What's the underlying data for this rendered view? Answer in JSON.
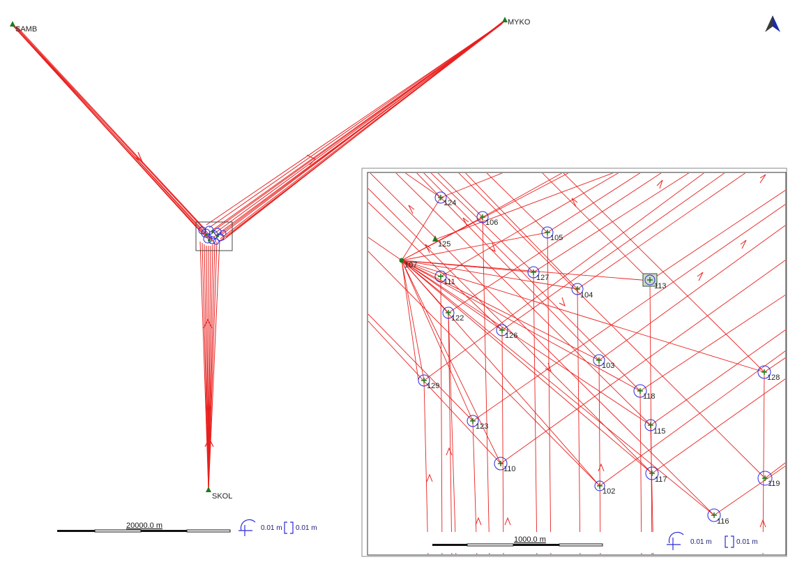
{
  "overview": {
    "control_stations": [
      {
        "name": "SAMB"
      },
      {
        "name": "MYKO"
      },
      {
        "name": "SKOL"
      }
    ],
    "scale_bar_label": "20000.0 m",
    "ellipse_tolerance": "0.01 m",
    "height_tolerance": "0.01 m"
  },
  "inset": {
    "stations": [
      "124",
      "106",
      "105",
      "125",
      "107",
      "111",
      "127",
      "104",
      "113",
      "122",
      "126",
      "103",
      "128",
      "129",
      "118",
      "123",
      "115",
      "110",
      "117",
      "102",
      "119",
      "116"
    ],
    "scale_bar_label": "1000.0 m",
    "ellipse_tolerance": "0.01 m",
    "height_tolerance": "0.01 m"
  },
  "colors": {
    "observation": "#e8201e",
    "ellipse": "#2a2ad8",
    "control_point": "#1f7a1f"
  },
  "icons": [
    "north-arrow-icon",
    "ellipse-tolerance-icon",
    "height-tolerance-icon"
  ]
}
